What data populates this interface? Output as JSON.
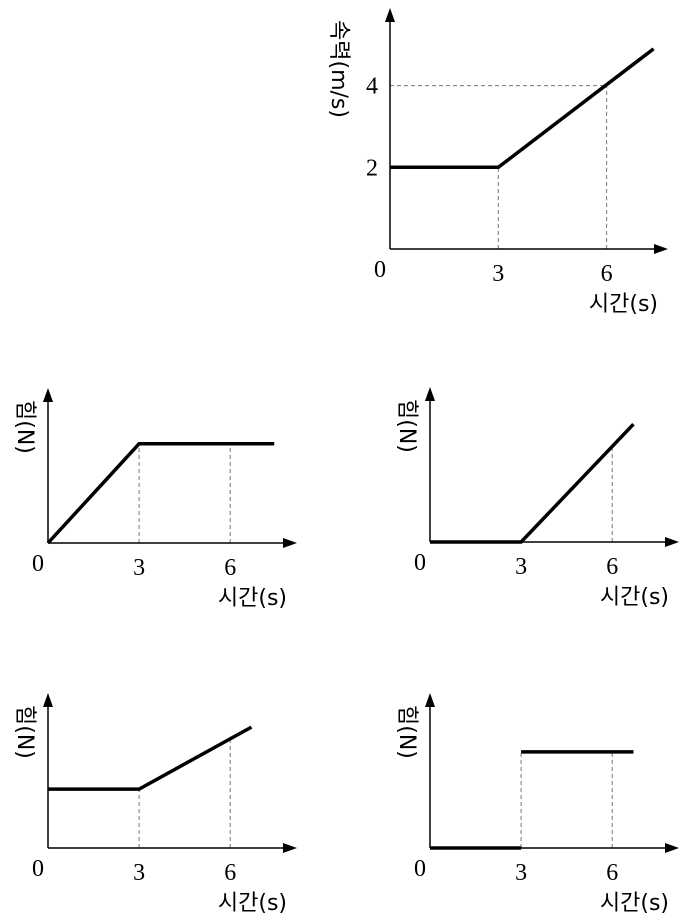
{
  "chart_data": [
    {
      "type": "line",
      "y_label": "속력(m/s)",
      "x_label": "시간(s)",
      "x": [
        0,
        3,
        7.3
      ],
      "series": [
        {
          "color": "#000000",
          "values": [
            2,
            2,
            4.9
          ]
        }
      ],
      "xlim": [
        0,
        7.7
      ],
      "ylim": [
        0,
        5.9
      ],
      "xticks": [
        0,
        3,
        6
      ],
      "yticks": [
        2,
        4
      ]
    },
    {
      "type": "line",
      "y_label": "힘(N)",
      "x_label": "시간(s)",
      "x": [
        0,
        3,
        7.45
      ],
      "series": [
        {
          "color": "#000000",
          "values": [
            0,
            3.2,
            3.2
          ]
        }
      ],
      "xlim": [
        0,
        8.2
      ],
      "ylim": [
        0,
        5
      ],
      "xticks": [
        0,
        3,
        6
      ],
      "yticks": []
    },
    {
      "type": "line",
      "y_label": "힘(N)",
      "x_label": "시간(s)",
      "x": [
        0,
        3,
        6.7
      ],
      "series": [
        {
          "color": "#000000",
          "values": [
            0,
            0,
            3.8
          ]
        }
      ],
      "xlim": [
        0,
        8.2
      ],
      "ylim": [
        0,
        5
      ],
      "xticks": [
        0,
        3,
        6
      ],
      "yticks": []
    },
    {
      "type": "line",
      "y_label": "힘(N)",
      "x_label": "시간(s)",
      "x": [
        0,
        3,
        6.7
      ],
      "series": [
        {
          "color": "#000000",
          "values": [
            1.9,
            1.9,
            3.9
          ]
        }
      ],
      "xlim": [
        0,
        8.2
      ],
      "ylim": [
        0,
        5
      ],
      "xticks": [
        0,
        3,
        6
      ],
      "yticks": []
    },
    {
      "type": "line",
      "y_label": "힘(N)",
      "x_label": "시간(s)",
      "x": [
        0,
        3,
        3,
        3,
        6.7
      ],
      "series": [
        {
          "color": "#000000",
          "values": [
            0,
            0,
            null,
            3.1,
            3.1
          ]
        }
      ],
      "xlim": [
        0,
        8.2
      ],
      "ylim": [
        0,
        5
      ],
      "xticks": [
        0,
        3,
        6
      ],
      "yticks": []
    }
  ]
}
